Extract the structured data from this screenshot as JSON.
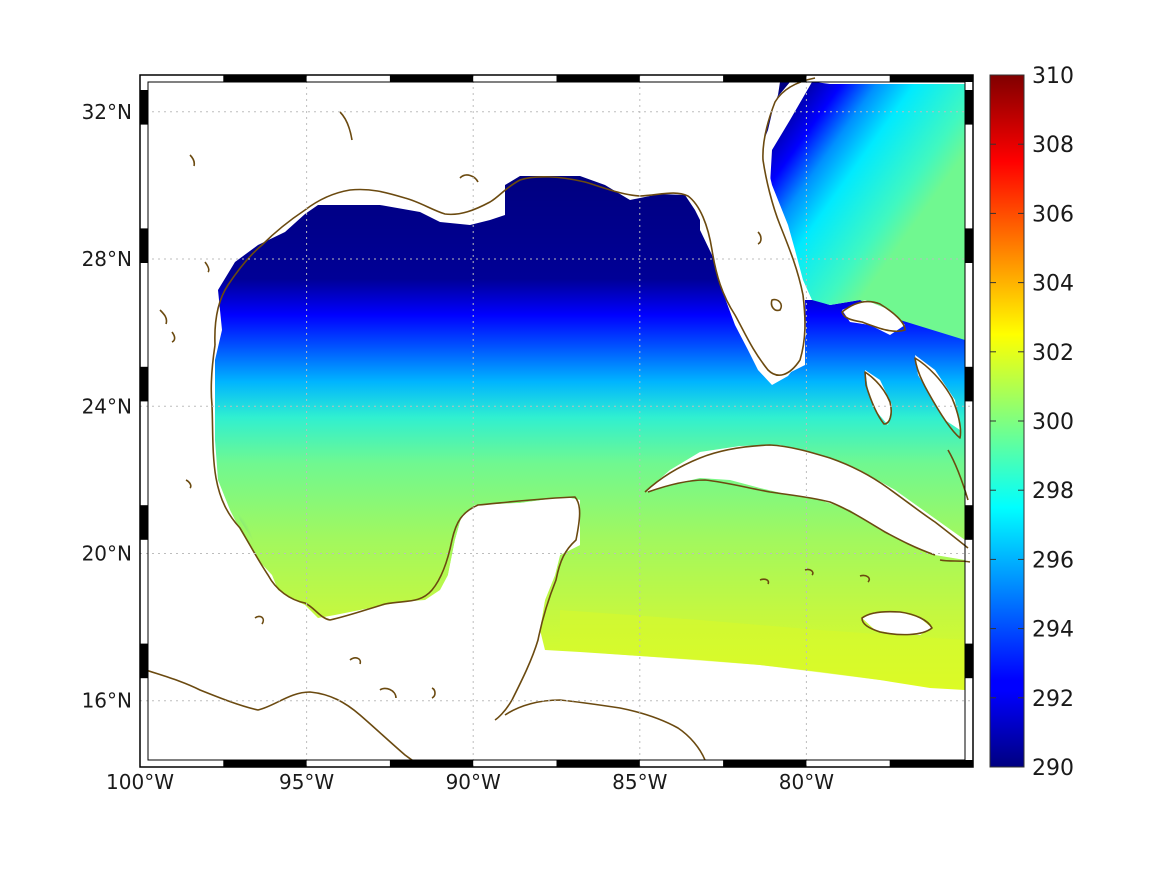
{
  "map": {
    "x_ticks": [
      "100°W",
      "95°W",
      "90°W",
      "85°W",
      "80°W"
    ],
    "y_ticks": [
      "32°N",
      "28°N",
      "24°N",
      "20°N",
      "16°N"
    ],
    "lon_values": [
      -100,
      -95,
      -90,
      -85,
      -80
    ],
    "lat_values": [
      32,
      28,
      24,
      20,
      16
    ],
    "lon_range": [
      -100,
      -75
    ],
    "lat_range": [
      14.2,
      33
    ],
    "colors": {
      "coastline": "#6b4a10",
      "land": "#ffffff",
      "grid": "#bdbdbd"
    }
  },
  "colorbar": {
    "min": 290,
    "max": 310,
    "tick_labels": [
      "310",
      "308",
      "306",
      "304",
      "302",
      "300",
      "298",
      "296",
      "294",
      "292",
      "290"
    ],
    "tick_values": [
      310,
      308,
      306,
      304,
      302,
      300,
      298,
      296,
      294,
      292,
      290
    ],
    "colormap": "jet"
  }
}
